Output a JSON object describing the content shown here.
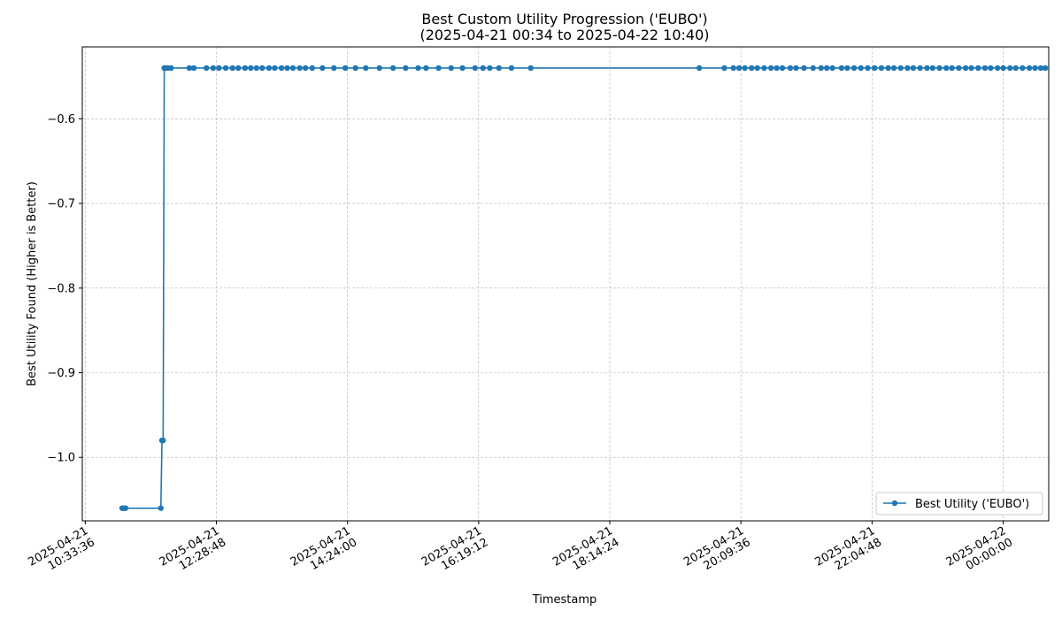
{
  "chart_data": {
    "type": "line",
    "title": "Best Custom Utility Progression ('EUBO')",
    "subtitle": "(2025-04-21 00:34 to 2025-04-22 10:40)",
    "xlabel": "Timestamp",
    "ylabel": "Best Utility Found (Higher is Better)",
    "ylim": [
      -1.075,
      -0.515
    ],
    "xlim": [
      "2025-04-21 10:31:00",
      "2025-04-22 00:40:00"
    ],
    "x_tick_labels": [
      [
        "2025-04-21",
        "10:33:36"
      ],
      [
        "2025-04-21",
        "12:28:48"
      ],
      [
        "2025-04-21",
        "14:24:00"
      ],
      [
        "2025-04-21",
        "16:19:12"
      ],
      [
        "2025-04-21",
        "18:14:24"
      ],
      [
        "2025-04-21",
        "20:09:36"
      ],
      [
        "2025-04-21",
        "22:04:48"
      ],
      [
        "2025-04-22",
        "00:00:00"
      ]
    ],
    "x_ticks": [
      "2025-04-21 10:33:36",
      "2025-04-21 12:28:48",
      "2025-04-21 14:24:00",
      "2025-04-21 16:19:12",
      "2025-04-21 18:14:24",
      "2025-04-21 20:09:36",
      "2025-04-21 22:04:48",
      "2025-04-22 00:00:00"
    ],
    "y_ticks": [
      -1.0,
      -0.9,
      -0.8,
      -0.7,
      -0.6
    ],
    "y_tick_labels": [
      "−1.0",
      "−0.9",
      "−0.8",
      "−0.7",
      "−0.6"
    ],
    "grid": true,
    "legend_position": "lower-right",
    "color": "#1f77b4",
    "series": [
      {
        "name": "Best Utility ('EUBO')",
        "x": [
          "2025-04-21 11:06:00",
          "2025-04-21 11:07:00",
          "2025-04-21 11:08:00",
          "2025-04-21 11:09:00",
          "2025-04-21 11:40:00",
          "2025-04-21 11:41:00",
          "2025-04-21 11:42:00",
          "2025-04-21 11:43:00",
          "2025-04-21 11:44:00",
          "2025-04-21 11:46:00",
          "2025-04-21 11:49:00",
          "2025-04-21 12:05:00",
          "2025-04-21 12:09:00",
          "2025-04-21 12:20:00",
          "2025-04-21 12:26:00",
          "2025-04-21 12:31:00",
          "2025-04-21 12:37:00",
          "2025-04-21 12:43:00",
          "2025-04-21 12:48:00",
          "2025-04-21 12:54:00",
          "2025-04-21 12:59:00",
          "2025-04-21 13:04:00",
          "2025-04-21 13:09:00",
          "2025-04-21 13:15:00",
          "2025-04-21 13:20:00",
          "2025-04-21 13:26:00",
          "2025-04-21 13:31:00",
          "2025-04-21 13:36:00",
          "2025-04-21 13:42:00",
          "2025-04-21 13:47:00",
          "2025-04-21 13:53:00",
          "2025-04-21 14:02:00",
          "2025-04-21 14:12:00",
          "2025-04-21 14:22:00",
          "2025-04-21 14:31:00",
          "2025-04-21 14:40:00",
          "2025-04-21 14:52:00",
          "2025-04-21 15:04:00",
          "2025-04-21 15:15:00",
          "2025-04-21 15:26:00",
          "2025-04-21 15:33:00",
          "2025-04-21 15:44:00",
          "2025-04-21 15:55:00",
          "2025-04-21 16:05:00",
          "2025-04-21 16:16:00",
          "2025-04-21 16:23:00",
          "2025-04-21 16:29:00",
          "2025-04-21 16:37:00",
          "2025-04-21 16:48:00",
          "2025-04-21 17:05:00",
          "2025-04-21 19:33:00",
          "2025-04-21 19:55:00",
          "2025-04-21 20:03:00",
          "2025-04-21 20:08:00",
          "2025-04-21 20:13:00",
          "2025-04-21 20:19:00",
          "2025-04-21 20:24:00",
          "2025-04-21 20:30:00",
          "2025-04-21 20:36:00",
          "2025-04-21 20:41:00",
          "2025-04-21 20:46:00",
          "2025-04-21 20:53:00",
          "2025-04-21 20:58:00",
          "2025-04-21 21:05:00",
          "2025-04-21 21:13:00",
          "2025-04-21 21:20:00",
          "2025-04-21 21:25:00",
          "2025-04-21 21:30:00",
          "2025-04-21 21:38:00",
          "2025-04-21 21:43:00",
          "2025-04-21 21:49:00",
          "2025-04-21 21:55:00",
          "2025-04-21 22:01:00",
          "2025-04-21 22:07:00",
          "2025-04-21 22:13:00",
          "2025-04-21 22:19:00",
          "2025-04-21 22:24:00",
          "2025-04-21 22:30:00",
          "2025-04-21 22:36:00",
          "2025-04-21 22:41:00",
          "2025-04-21 22:47:00",
          "2025-04-21 22:53:00",
          "2025-04-21 22:58:00",
          "2025-04-21 23:04:00",
          "2025-04-21 23:10:00",
          "2025-04-21 23:15:00",
          "2025-04-21 23:21:00",
          "2025-04-21 23:27:00",
          "2025-04-21 23:32:00",
          "2025-04-21 23:38:00",
          "2025-04-21 23:44:00",
          "2025-04-21 23:49:00",
          "2025-04-21 23:55:00",
          "2025-04-22 00:00:00",
          "2025-04-22 00:06:00",
          "2025-04-22 00:11:00",
          "2025-04-22 00:17:00",
          "2025-04-22 00:23:00",
          "2025-04-22 00:28:00",
          "2025-04-22 00:33:00",
          "2025-04-22 00:37:00"
        ],
        "y": [
          -1.06,
          -1.06,
          -1.06,
          -1.06,
          -1.06,
          -0.98,
          -0.98,
          -0.54,
          -0.54,
          -0.54,
          -0.54,
          -0.54,
          -0.54,
          -0.54,
          -0.54,
          -0.54,
          -0.54,
          -0.54,
          -0.54,
          -0.54,
          -0.54,
          -0.54,
          -0.54,
          -0.54,
          -0.54,
          -0.54,
          -0.54,
          -0.54,
          -0.54,
          -0.54,
          -0.54,
          -0.54,
          -0.54,
          -0.54,
          -0.54,
          -0.54,
          -0.54,
          -0.54,
          -0.54,
          -0.54,
          -0.54,
          -0.54,
          -0.54,
          -0.54,
          -0.54,
          -0.54,
          -0.54,
          -0.54,
          -0.54,
          -0.54,
          -0.54,
          -0.54,
          -0.54,
          -0.54,
          -0.54,
          -0.54,
          -0.54,
          -0.54,
          -0.54,
          -0.54,
          -0.54,
          -0.54,
          -0.54,
          -0.54,
          -0.54,
          -0.54,
          -0.54,
          -0.54,
          -0.54,
          -0.54,
          -0.54,
          -0.54,
          -0.54,
          -0.54,
          -0.54,
          -0.54,
          -0.54,
          -0.54,
          -0.54,
          -0.54,
          -0.54,
          -0.54,
          -0.54,
          -0.54,
          -0.54,
          -0.54,
          -0.54,
          -0.54,
          -0.54,
          -0.54,
          -0.54,
          -0.54,
          -0.54,
          -0.54,
          -0.54,
          -0.54,
          -0.54,
          -0.54,
          -0.54,
          -0.54,
          -0.54
        ]
      }
    ]
  }
}
